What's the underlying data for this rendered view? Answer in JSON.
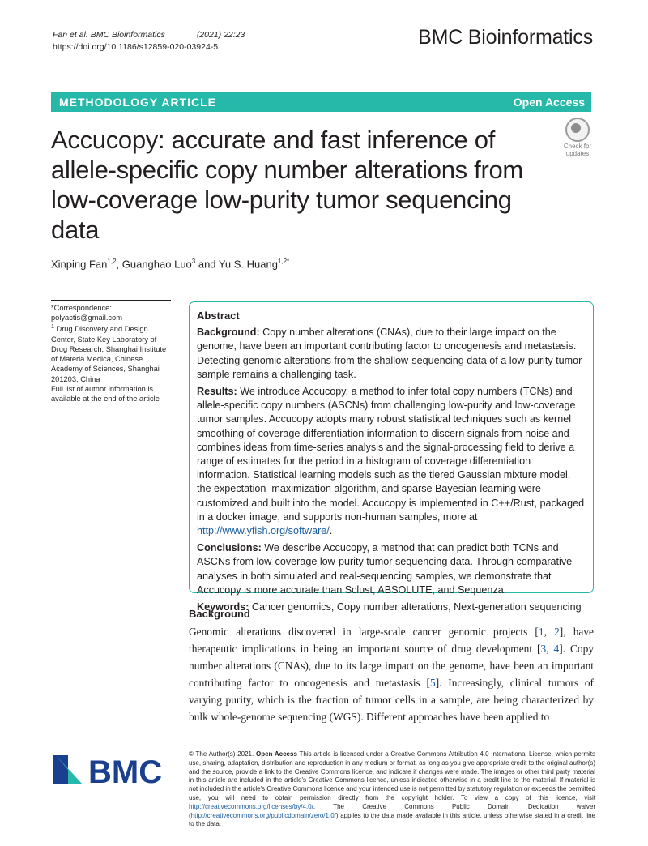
{
  "header": {
    "citation_authors": "Fan et al. BMC Bioinformatics",
    "citation_vol": "(2021) 22:23",
    "doi": "https://doi.org/10.1186/s12859-020-03924-5",
    "journal": "BMC Bioinformatics"
  },
  "banner": {
    "article_type": "METHODOLOGY ARTICLE",
    "access": "Open Access"
  },
  "badge": {
    "line1": "Check for",
    "line2": "updates"
  },
  "title": "Accucopy: accurate and fast inference of allele-specific copy number alterations from low-coverage low-purity tumor sequencing data",
  "authors": [
    {
      "name": "Xinping Fan",
      "sup": "1,2",
      "sep": ", "
    },
    {
      "name": "Guanghao Luo",
      "sup": "3",
      "sep": " and "
    },
    {
      "name": "Yu S. Huang",
      "sup": "1,2*",
      "sep": ""
    }
  ],
  "sidebar": {
    "correspondence_label": "*Correspondence:",
    "email": "polyactis@gmail.com",
    "affiliation_sup": "1",
    "affiliation": "Drug Discovery and Design Center, State Key Laboratory of Drug Research, Shanghai Institute of Materia Medica, Chinese Academy of Sciences, Shanghai 201203, China",
    "note": "Full list of author information is available at the end of the article"
  },
  "abstract": {
    "heading": "Abstract",
    "background_label": "Background:",
    "background": "Copy number alterations (CNAs), due to their large impact on the genome, have been an important contributing factor to oncogenesis and metastasis. Detecting genomic alterations from the shallow-sequencing data of a low-purity tumor sample remains a challenging task.",
    "results_label": "Results:",
    "results": "We introduce Accucopy, a method to infer total copy numbers (TCNs) and allele-specific copy numbers (ASCNs) from challenging low-purity and low-coverage tumor samples. Accucopy adopts many robust statistical techniques such as kernel smoothing of coverage differentiation information to discern signals from noise and combines ideas from time-series analysis and the signal-processing field to derive a range of estimates for the period in a histogram of coverage differentiation information. Statistical learning models such as the tiered Gaussian mixture model, the expectation–maximization algorithm, and sparse Bayesian learning were customized and built into the model. Accucopy is implemented in C++/Rust, packaged in a docker image, and supports non-human samples, more at",
    "results_link": "http://www.yfish.org/software/",
    "results_end": ".",
    "conclusions_label": "Conclusions:",
    "conclusions": "We describe Accucopy, a method that can predict both TCNs and ASCNs from low-coverage low-purity tumor sequencing data. Through comparative analyses in both simulated and real-sequencing samples, we demonstrate that Accucopy is more accurate than Sclust, ABSOLUTE, and Sequenza.",
    "keywords_label": "Keywords:",
    "keywords": "Cancer genomics, Copy number alterations, Next-generation sequencing"
  },
  "body": {
    "heading": "Background",
    "parts": [
      "Genomic alterations discovered in large-scale cancer genomic projects [",
      "1",
      ", ",
      "2",
      "], have therapeutic implications in being an important source of drug development [",
      "3",
      ", ",
      "4",
      "]. Copy number alterations (CNAs), due to its large impact on the genome, have been an important contributing factor to oncogenesis and metastasis [",
      "5",
      "]. Increasingly, clinical tumors of varying purity, which is the fraction of tumor cells in a sample, are being characterized by bulk whole-genome sequencing (WGS). Different approaches have been applied to"
    ]
  },
  "footer": {
    "logo_text": "BMC",
    "license_start": "© The Author(s) 2021.",
    "license_bold": "Open Access",
    "license_main": "This article is licensed under a Creative Commons Attribution 4.0 International License, which permits use, sharing, adaptation, distribution and reproduction in any medium or format, as long as you give appropriate credit to the original author(s) and the source, provide a link to the Creative Commons licence, and indicate if changes were made. The images or other third party material in this article are included in the article's Creative Commons licence, unless indicated otherwise in a credit line to the material. If material is not included in the article's Creative Commons licence and your intended use is not permitted by statutory regulation or exceeds the permitted use, you will need to obtain permission directly from the copyright holder. To view a copy of this licence, visit",
    "license_link1": "http://creativecommons.org/licenses/by/4.0/",
    "license_mid": ". The Creative Commons Public Domain Dedication waiver (",
    "license_link2": "http://creativecommons.org/publicdomain/zero/1.0/",
    "license_end": ") applies to the data made available in this article, unless otherwise stated in a credit line to the data."
  }
}
